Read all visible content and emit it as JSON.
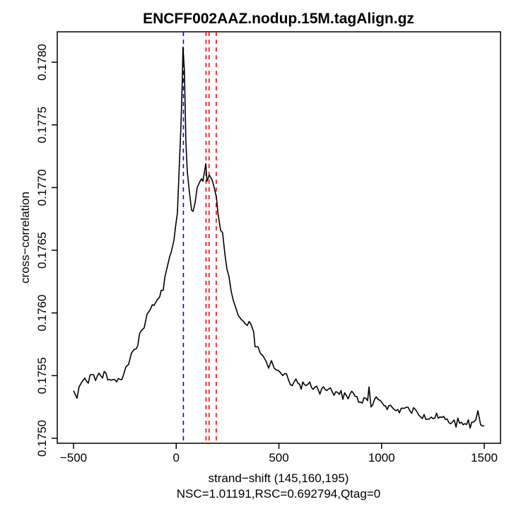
{
  "chart_data": {
    "type": "line",
    "title": "ENCFF002AAZ.nodup.15M.tagAlign.gz",
    "xlabel": "strand−shift (145,160,195)",
    "subtitle": "NSC=1.01191,RSC=0.692794,Qtag=0",
    "ylabel": "cross−correlation",
    "xlim": [
      -560,
      1580
    ],
    "ylim": [
      0.17496,
      0.17822
    ],
    "x_ticks": [
      -500,
      0,
      500,
      1000,
      1500
    ],
    "x_tick_labels": [
      "−500",
      "0",
      "500",
      "1000",
      "1500"
    ],
    "y_ticks": [
      0.175,
      0.1755,
      0.176,
      0.1765,
      0.177,
      0.1775,
      0.178
    ],
    "y_tick_labels": [
      "0.1750",
      "0.1755",
      "0.1760",
      "0.1765",
      "0.1770",
      "0.1775",
      "0.1780"
    ],
    "grid": false,
    "series": [
      {
        "name": "cross-correlation",
        "color": "#000000",
        "x": [
          -500,
          -483,
          -473,
          -459,
          -445,
          -428,
          -411,
          -393,
          -376,
          -359,
          -342,
          -325,
          -307,
          -290,
          -273,
          -256,
          -245,
          -232,
          -218,
          -204,
          -187,
          -170,
          -156,
          -142,
          -125,
          -108,
          -94,
          -80,
          -73,
          -63,
          -56,
          -46,
          -32,
          -25,
          -11,
          -4,
          6,
          13,
          23,
          30,
          33,
          40,
          47,
          54,
          64,
          75,
          82,
          92,
          102,
          113,
          123,
          130,
          144,
          150,
          161,
          175,
          185,
          196,
          203,
          216,
          226,
          237,
          247,
          257,
          268,
          278,
          292,
          302,
          316,
          329,
          346,
          364,
          377,
          384,
          398,
          409,
          422,
          436,
          450,
          464,
          477,
          498,
          519,
          546,
          574,
          601,
          632,
          650,
          667,
          691,
          725,
          760,
          794,
          829,
          863,
          897,
          932,
          939,
          949,
          983,
          1004,
          1035,
          1070,
          1104,
          1138,
          1173,
          1207,
          1242,
          1276,
          1311,
          1345,
          1380,
          1414,
          1448,
          1469,
          1482,
          1500
        ],
        "y": [
          0.17538,
          0.17532,
          0.17541,
          0.17545,
          0.17548,
          0.17544,
          0.17551,
          0.17546,
          0.17552,
          0.17548,
          0.17552,
          0.17547,
          0.17547,
          0.17545,
          0.17547,
          0.17551,
          0.17557,
          0.17559,
          0.17568,
          0.17571,
          0.17574,
          0.17586,
          0.17588,
          0.17599,
          0.17603,
          0.17606,
          0.1761,
          0.17613,
          0.17618,
          0.17618,
          0.17628,
          0.17635,
          0.17645,
          0.17648,
          0.17658,
          0.17668,
          0.1768,
          0.17709,
          0.17748,
          0.17788,
          0.17812,
          0.17793,
          0.17737,
          0.17713,
          0.17697,
          0.17682,
          0.17681,
          0.17688,
          0.177,
          0.17704,
          0.17707,
          0.17705,
          0.17719,
          0.17705,
          0.1771,
          0.17706,
          0.177,
          0.17692,
          0.1768,
          0.17666,
          0.17664,
          0.17647,
          0.17635,
          0.17629,
          0.17617,
          0.1761,
          0.17603,
          0.17598,
          0.17595,
          0.17593,
          0.1759,
          0.17591,
          0.17585,
          0.17573,
          0.17573,
          0.17568,
          0.17566,
          0.17562,
          0.17556,
          0.17562,
          0.17556,
          0.17554,
          0.1755,
          0.17547,
          0.17545,
          0.17543,
          0.17542,
          0.17545,
          0.17539,
          0.17539,
          0.17539,
          0.17537,
          0.17535,
          0.17534,
          0.17536,
          0.17529,
          0.1753,
          0.17541,
          0.17525,
          0.17531,
          0.17528,
          0.17526,
          0.17522,
          0.17524,
          0.17522,
          0.17521,
          0.17519,
          0.17517,
          0.17516,
          0.17515,
          0.17513,
          0.17512,
          0.17511,
          0.17513,
          0.17522,
          0.17511,
          0.1751
        ]
      }
    ],
    "vlines": [
      {
        "name": "blue-line",
        "x": 35,
        "color": "#0000ff",
        "style": "dashed"
      },
      {
        "name": "red-line-145",
        "x": 145,
        "color": "#ff0000",
        "style": "dashed"
      },
      {
        "name": "red-line-160",
        "x": 160,
        "color": "#ff0000",
        "style": "dashed"
      },
      {
        "name": "red-line-195",
        "x": 195,
        "color": "#ff0000",
        "style": "dashed"
      }
    ]
  }
}
